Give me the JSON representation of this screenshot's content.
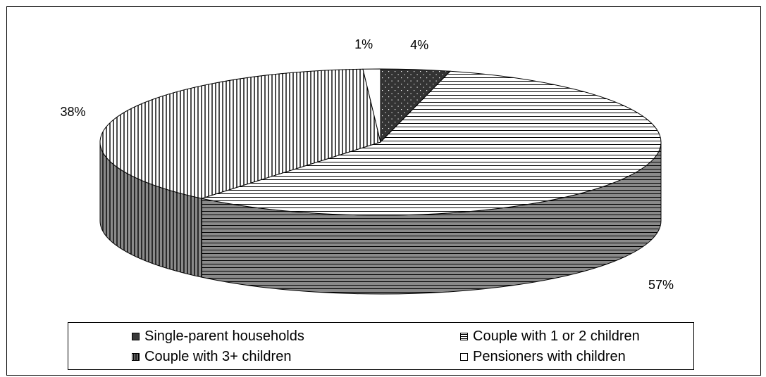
{
  "chart_data": {
    "type": "pie",
    "categories": [
      "Single-parent households",
      "Couple with 1 or 2 children",
      "Couple with 3+ children",
      "Pensioners with children"
    ],
    "values": [
      4,
      57,
      38,
      1
    ],
    "data_labels": [
      "4%",
      "57%",
      "38%",
      "1%"
    ],
    "legend_position": "bottom",
    "style": "3d-exploded-none"
  },
  "legend": {
    "items": [
      {
        "label": "Single-parent households",
        "swatch": "single"
      },
      {
        "label": "Couple with 1 or 2 children",
        "swatch": "couple12"
      },
      {
        "label": "Couple with 3+ children",
        "swatch": "couple3"
      },
      {
        "label": "Pensioners with children",
        "swatch": "pension"
      }
    ]
  },
  "colors": {
    "dark_fill": "#3a3a3a",
    "side_fill": "#7a7a7a",
    "line": "#000000",
    "background": "#ffffff"
  }
}
